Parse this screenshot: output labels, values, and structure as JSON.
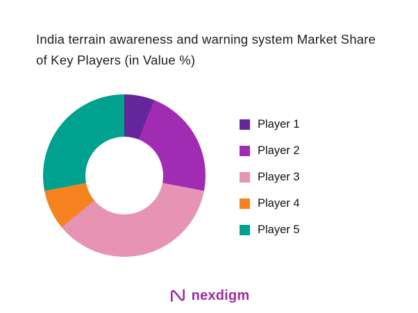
{
  "chart_data": {
    "type": "pie",
    "donut": true,
    "title": "India terrain awareness and warning system Market Share of Key Players (in Value %)",
    "categories": [
      "Player 1",
      "Player 2",
      "Player 3",
      "Player 4",
      "Player 5"
    ],
    "values": [
      6,
      22,
      36,
      8,
      28
    ],
    "colors": [
      "#63279B",
      "#A12CB4",
      "#E693B4",
      "#F5821F",
      "#00A18F"
    ],
    "legend_position": "right",
    "start_angle_deg": 0,
    "direction": "clockwise"
  },
  "footer": {
    "brand": "nexdigm",
    "brand_color": "#A02C9E"
  }
}
